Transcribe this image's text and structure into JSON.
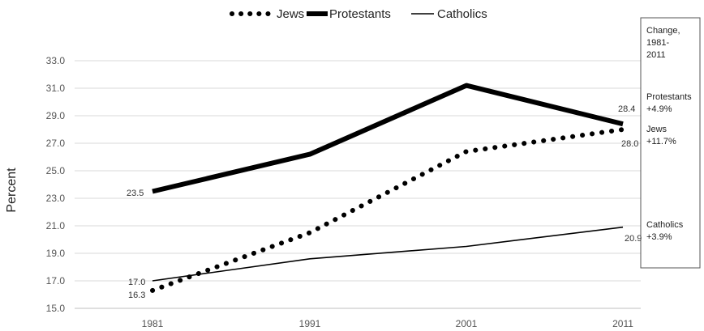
{
  "chart_data": {
    "type": "line",
    "title": "",
    "xlabel": "",
    "ylabel": "Percent",
    "x": [
      "1981",
      "1991",
      "2001",
      "2011"
    ],
    "ylim": [
      15.0,
      33.0
    ],
    "yticks": [
      "15.0",
      "17.0",
      "19.0",
      "21.0",
      "23.0",
      "25.0",
      "27.0",
      "29.0",
      "31.0",
      "33.0"
    ],
    "grid": "horizontal",
    "legend": "top",
    "series": [
      {
        "name": "Jews",
        "style": "dotted",
        "values": [
          16.3,
          20.5,
          26.4,
          28.0
        ]
      },
      {
        "name": "Protestants",
        "style": "thick",
        "values": [
          23.5,
          26.2,
          31.2,
          28.4
        ]
      },
      {
        "name": "Catholics",
        "style": "thin",
        "values": [
          17.0,
          18.6,
          19.5,
          20.9
        ]
      }
    ],
    "data_labels": {
      "jews_1981": "16.3",
      "protestants_1981": "23.5",
      "catholics_1981": "17.0",
      "protestants_2011": "28.4",
      "jews_2011": "28.0",
      "catholics_2011": "20.9"
    },
    "change_box": {
      "title_lines": [
        "Change,",
        "1981-",
        "2011"
      ],
      "protestants_name": "Protestants",
      "protestants_change": "+4.9%",
      "jews_name": "Jews",
      "jews_change": "+11.7%",
      "catholics_name": "Catholics",
      "catholics_change": "+3.9%"
    },
    "colors": {
      "line": "#000000",
      "grid": "#d9d9d9",
      "text": "#222222"
    }
  }
}
